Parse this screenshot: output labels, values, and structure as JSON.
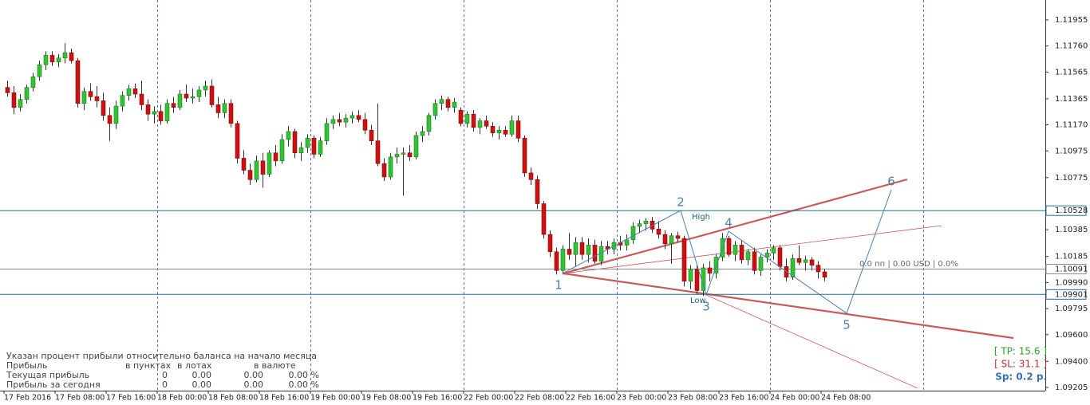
{
  "chart_data": {
    "type": "candlestick",
    "ylim": [
      1.09181,
      1.12104
    ],
    "yticks": [
      1.11955,
      {
        "value": 1.1176,
        "label": "1.11760"
      },
      1.11565,
      1.11365,
      {
        "value": 1.1117,
        "label": "1.11170"
      },
      1.10975,
      1.10775,
      1.10385,
      1.10185,
      {
        "value": 1.0999,
        "label": "1.09990"
      },
      1.09795,
      {
        "value": 1.096,
        "label": "1.09600"
      },
      {
        "value": 1.094,
        "label": "1.09400"
      },
      1.09205
    ],
    "time_labels": [
      "17 Feb 2016",
      "17 Feb 08:00",
      "17 Feb 16:00",
      "18 Feb 00:00",
      "18 Feb 08:00",
      "18 Feb 16:00",
      "19 Feb 00:00",
      "19 Feb 08:00",
      "19 Feb 16:00",
      "22 Feb 00:00",
      "22 Feb 08:00",
      "22 Feb 16:00",
      "23 Feb 00:00",
      "23 Feb 08:00",
      "23 Feb 16:00",
      "24 Feb 00:00",
      "24 Feb 08:00"
    ],
    "up_color": "#33c233",
    "down_color": "#d01010",
    "ohlc": [
      [
        1.1145,
        1.115,
        1.1138,
        1.1141
      ],
      [
        1.1141,
        1.1146,
        1.1125,
        1.113
      ],
      [
        1.113,
        1.114,
        1.1127,
        1.1136
      ],
      [
        1.1136,
        1.1147,
        1.1133,
        1.1145
      ],
      [
        1.1145,
        1.1156,
        1.1142,
        1.1153
      ],
      [
        1.1153,
        1.1165,
        1.115,
        1.1162
      ],
      [
        1.1162,
        1.1172,
        1.1158,
        1.1169
      ],
      [
        1.1169,
        1.1172,
        1.1161,
        1.1164
      ],
      [
        1.1164,
        1.117,
        1.116,
        1.1167
      ],
      [
        1.1167,
        1.1178,
        1.1163,
        1.1171
      ],
      [
        1.1171,
        1.1174,
        1.1163,
        1.1165
      ],
      [
        1.1165,
        1.1167,
        1.113,
        1.1133
      ],
      [
        1.1133,
        1.1145,
        1.1128,
        1.1142
      ],
      [
        1.1142,
        1.1148,
        1.1135,
        1.1138
      ],
      [
        1.1138,
        1.1146,
        1.113,
        1.1135
      ],
      [
        1.1135,
        1.1141,
        1.112,
        1.1124
      ],
      [
        1.1124,
        1.113,
        1.1105,
        1.1118
      ],
      [
        1.1118,
        1.1135,
        1.1114,
        1.1131
      ],
      [
        1.1131,
        1.1142,
        1.1127,
        1.1139
      ],
      [
        1.1139,
        1.1147,
        1.1135,
        1.1144
      ],
      [
        1.1144,
        1.1148,
        1.1137,
        1.114
      ],
      [
        1.114,
        1.115,
        1.1128,
        1.1132
      ],
      [
        1.1132,
        1.1136,
        1.112,
        1.1125
      ],
      [
        1.1125,
        1.1131,
        1.1118,
        1.1127
      ],
      [
        1.1127,
        1.1132,
        1.1117,
        1.112
      ],
      [
        1.112,
        1.1136,
        1.1118,
        1.1133
      ],
      [
        1.1133,
        1.1138,
        1.1126,
        1.113
      ],
      [
        1.113,
        1.1143,
        1.1128,
        1.114
      ],
      [
        1.114,
        1.1147,
        1.1134,
        1.1137
      ],
      [
        1.1137,
        1.1144,
        1.1133,
        1.1138
      ],
      [
        1.1138,
        1.1146,
        1.1134,
        1.1143
      ],
      [
        1.1143,
        1.115,
        1.1138,
        1.1146
      ],
      [
        1.1146,
        1.1151,
        1.113,
        1.1132
      ],
      [
        1.1132,
        1.1138,
        1.1122,
        1.1126
      ],
      [
        1.1126,
        1.1136,
        1.1122,
        1.1133
      ],
      [
        1.1133,
        1.1136,
        1.1115,
        1.1118
      ],
      [
        1.1118,
        1.112,
        1.1088,
        1.1092
      ],
      [
        1.1092,
        1.1098,
        1.108,
        1.1083
      ],
      [
        1.1083,
        1.1088,
        1.1072,
        1.1076
      ],
      [
        1.1076,
        1.1094,
        1.1074,
        1.109
      ],
      [
        1.109,
        1.1096,
        1.107,
        1.108
      ],
      [
        1.108,
        1.1098,
        1.1078,
        1.1096
      ],
      [
        1.1096,
        1.1102,
        1.1086,
        1.109
      ],
      [
        1.109,
        1.111,
        1.1088,
        1.1106
      ],
      [
        1.1106,
        1.1116,
        1.1101,
        1.1112
      ],
      [
        1.1112,
        1.1114,
        1.1092,
        1.1096
      ],
      [
        1.1096,
        1.1104,
        1.109,
        1.11
      ],
      [
        1.11,
        1.111,
        1.1096,
        1.1107
      ],
      [
        1.1107,
        1.1109,
        1.1092,
        1.1095
      ],
      [
        1.1095,
        1.1108,
        1.1093,
        1.1105
      ],
      [
        1.1105,
        1.1122,
        1.1102,
        1.1118
      ],
      [
        1.1118,
        1.1124,
        1.1114,
        1.1121
      ],
      [
        1.1121,
        1.1126,
        1.1116,
        1.1119
      ],
      [
        1.1119,
        1.1125,
        1.1115,
        1.1122
      ],
      [
        1.1122,
        1.1127,
        1.1118,
        1.1124
      ],
      [
        1.1124,
        1.1128,
        1.1119,
        1.1121
      ],
      [
        1.1121,
        1.1126,
        1.111,
        1.1113
      ],
      [
        1.1113,
        1.1117,
        1.1102,
        1.1105
      ],
      [
        1.1105,
        1.1133,
        1.1086,
        1.1088
      ],
      [
        1.1088,
        1.1092,
        1.1075,
        1.1078
      ],
      [
        1.1078,
        1.1096,
        1.1076,
        1.1093
      ],
      [
        1.1093,
        1.11,
        1.1088,
        1.1095
      ],
      [
        1.1095,
        1.11,
        1.1064,
        1.1096
      ],
      [
        1.1096,
        1.1102,
        1.109,
        1.1093
      ],
      [
        1.1093,
        1.1112,
        1.1091,
        1.1109
      ],
      [
        1.1109,
        1.1116,
        1.1104,
        1.1112
      ],
      [
        1.1112,
        1.1126,
        1.1109,
        1.1124
      ],
      [
        1.1124,
        1.1136,
        1.1121,
        1.1133
      ],
      [
        1.1133,
        1.1139,
        1.1128,
        1.1136
      ],
      [
        1.1136,
        1.1138,
        1.1127,
        1.113
      ],
      [
        1.113,
        1.1137,
        1.1126,
        1.1134
      ],
      [
        1.1128,
        1.113,
        1.1116,
        1.1118
      ],
      [
        1.1118,
        1.1127,
        1.1115,
        1.1125
      ],
      [
        1.1125,
        1.1128,
        1.1112,
        1.1115
      ],
      [
        1.1115,
        1.1122,
        1.111,
        1.112
      ],
      [
        1.112,
        1.1124,
        1.1114,
        1.1116
      ],
      [
        1.1116,
        1.1119,
        1.1108,
        1.1111
      ],
      [
        1.1111,
        1.1116,
        1.1106,
        1.1113
      ],
      [
        1.1113,
        1.1116,
        1.1108,
        1.111
      ],
      [
        1.111,
        1.1124,
        1.1108,
        1.112
      ],
      [
        1.112,
        1.1124,
        1.1104,
        1.1107
      ],
      [
        1.1107,
        1.1109,
        1.1078,
        1.1081
      ],
      [
        1.1081,
        1.1085,
        1.1072,
        1.1076
      ],
      [
        1.1076,
        1.1079,
        1.1054,
        1.1058
      ],
      [
        1.1058,
        1.106,
        1.1032,
        1.1035
      ],
      [
        1.1035,
        1.1038,
        1.1018,
        1.1022
      ],
      [
        1.1022,
        1.1025,
        1.1005,
        1.1008
      ],
      [
        1.1008,
        1.1027,
        1.1005,
        1.1024
      ],
      [
        1.1024,
        1.1036,
        1.1016,
        1.102
      ],
      [
        1.102,
        1.1033,
        1.1011,
        1.1029
      ],
      [
        1.1029,
        1.1033,
        1.1016,
        1.102
      ],
      [
        1.102,
        1.1032,
        1.1014,
        1.1027
      ],
      [
        1.1027,
        1.1031,
        1.1013,
        1.1015
      ],
      [
        1.1015,
        1.103,
        1.1012,
        1.1026
      ],
      [
        1.1026,
        1.103,
        1.102,
        1.1024
      ],
      [
        1.1024,
        1.1032,
        1.102,
        1.1029
      ],
      [
        1.1029,
        1.1034,
        1.1023,
        1.1027
      ],
      [
        1.1027,
        1.1035,
        1.1023,
        1.1031
      ],
      [
        1.1031,
        1.1044,
        1.1028,
        1.1041
      ],
      [
        1.1041,
        1.1046,
        1.1036,
        1.1043
      ],
      [
        1.1043,
        1.1047,
        1.1038,
        1.1045
      ],
      [
        1.1045,
        1.1048,
        1.1036,
        1.1039
      ],
      [
        1.1039,
        1.1045,
        1.1032,
        1.1035
      ],
      [
        1.1035,
        1.1038,
        1.1024,
        1.1028
      ],
      [
        1.1028,
        1.1036,
        1.1013,
        1.1034
      ],
      [
        1.1034,
        1.1037,
        1.1029,
        1.1032
      ],
      [
        1.1032,
        1.1034,
        1.0996,
        1.1
      ],
      [
        1.1,
        1.1012,
        1.0994,
        1.1009
      ],
      [
        1.1009,
        1.1012,
        1.099,
        1.0993
      ],
      [
        1.0993,
        1.1013,
        1.0989,
        1.101
      ],
      [
        1.101,
        1.1015,
        1.1,
        1.1006
      ],
      [
        1.1006,
        1.102,
        1.1002,
        1.1018
      ],
      [
        1.1018,
        1.1036,
        1.1015,
        1.1032
      ],
      [
        1.1032,
        1.1034,
        1.1018,
        1.102
      ],
      [
        1.102,
        1.103,
        1.1015,
        1.1027
      ],
      [
        1.1027,
        1.1031,
        1.1013,
        1.1016
      ],
      [
        1.1016,
        1.1024,
        1.1012,
        1.1022
      ],
      [
        1.1022,
        1.1025,
        1.1005,
        1.1008
      ],
      [
        1.1008,
        1.102,
        1.1004,
        1.1018
      ],
      [
        1.1018,
        1.1024,
        1.1014,
        1.1021
      ],
      [
        1.1021,
        1.1027,
        1.1016,
        1.1025
      ],
      [
        1.1025,
        1.1027,
        1.1008,
        1.1011
      ],
      [
        1.1011,
        1.1017,
        1.1,
        1.1003
      ],
      [
        1.1003,
        1.102,
        1.1001,
        1.1017
      ],
      [
        1.1017,
        1.1027,
        1.1012,
        1.1014
      ],
      [
        1.1014,
        1.1019,
        1.1008,
        1.1016
      ],
      [
        1.1016,
        1.1018,
        1.1008,
        1.1012
      ],
      [
        1.1012,
        1.1015,
        1.1002,
        1.1007
      ],
      [
        1.1007,
        1.1009,
        1.1,
        1.1003
      ]
    ],
    "levels": [
      {
        "value": 1.10528,
        "color": "#1f6f8b"
      },
      {
        "value": 1.10091,
        "color": "#8a8a8a"
      },
      {
        "value": 1.09901,
        "color": "#1f6f8b"
      }
    ],
    "waves": {
      "labels": [
        "1",
        "2",
        "3",
        "4",
        "5",
        "6"
      ],
      "x": [
        87,
        105.5,
        109.5,
        113,
        131.5,
        138.5
      ],
      "y": [
        1.10058,
        1.10529,
        1.09897,
        1.10374,
        1.0976,
        1.10684
      ],
      "color": "#4a7fb0"
    },
    "high_label": "High",
    "low_label": "Low",
    "position_info": "0.0 пп | 0.00 USD | 0.0%",
    "tp": "[ TP: 15.6 ]",
    "sl": "[ SL: 31.1 ]",
    "spread": "Sp: 0.2 p."
  },
  "info_panel": {
    "note": "Указан процент прибыли относительно баланса на начало месяца",
    "header": [
      "Прибыль",
      "в пунктах",
      "в лотах",
      "в валюте"
    ],
    "rows": [
      [
        "Текущая прибыль",
        "0",
        "0.00",
        "0.00",
        "0.00 %"
      ],
      [
        "Прибыль за сегодня",
        "0",
        "0.00",
        "0.00",
        "0.00 %"
      ]
    ]
  }
}
